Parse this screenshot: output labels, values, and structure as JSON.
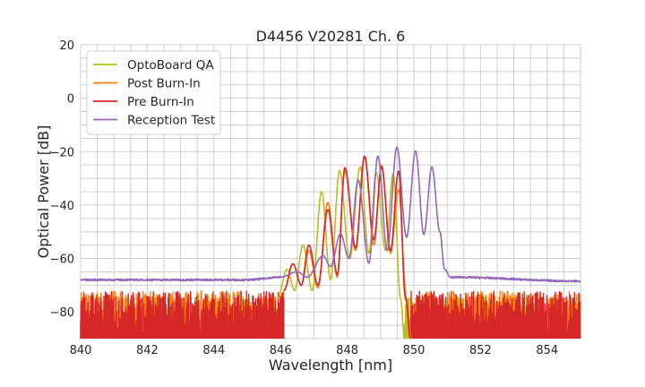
{
  "chart_data": {
    "type": "line",
    "title": "D4456 V20281 Ch. 6",
    "xlabel": "Wavelength [nm]",
    "ylabel": "Optical Power [dB]",
    "xlim": [
      840,
      855
    ],
    "ylim": [
      -90,
      20
    ],
    "xticks": [
      "840",
      "842",
      "844",
      "846",
      "848",
      "850",
      "852",
      "854"
    ],
    "yticks": [
      "20",
      "0",
      "−20",
      "−40",
      "−60",
      "−80"
    ],
    "grid": true,
    "legend_position": "top-left",
    "series": [
      {
        "name": "OptoBoard QA",
        "color": "#bcbd22",
        "noise_floor": [
          -90,
          -74
        ],
        "points": [
          [
            845.9,
            -75
          ],
          [
            846.2,
            -64
          ],
          [
            846.42,
            -72
          ],
          [
            846.67,
            -55
          ],
          [
            846.95,
            -72
          ],
          [
            847.23,
            -35
          ],
          [
            847.5,
            -68
          ],
          [
            847.77,
            -27
          ],
          [
            848.07,
            -60
          ],
          [
            848.39,
            -25.7
          ],
          [
            848.65,
            -58
          ],
          [
            848.87,
            -27.7
          ],
          [
            849.15,
            -57
          ],
          [
            849.38,
            -28.3
          ],
          [
            849.6,
            -75
          ],
          [
            849.72,
            -90
          ]
        ]
      },
      {
        "name": "Post Burn-In",
        "color": "#ff7f0e",
        "noise_floor": [
          -90,
          -72
        ],
        "points": [
          [
            846.1,
            -72
          ],
          [
            846.37,
            -62
          ],
          [
            846.62,
            -70
          ],
          [
            846.85,
            -57
          ],
          [
            847.12,
            -71
          ],
          [
            847.42,
            -39
          ],
          [
            847.7,
            -67
          ],
          [
            847.93,
            -27
          ],
          [
            848.25,
            -57
          ],
          [
            848.52,
            -22
          ],
          [
            848.8,
            -55
          ],
          [
            849.03,
            -25
          ],
          [
            849.3,
            -58
          ],
          [
            849.54,
            -34.3
          ],
          [
            849.78,
            -75
          ],
          [
            849.92,
            -90
          ]
        ]
      },
      {
        "name": "Pre Burn-In",
        "color": "#d62728",
        "noise_floor": [
          -90,
          -72
        ],
        "points": [
          [
            846.1,
            -72
          ],
          [
            846.37,
            -62
          ],
          [
            846.62,
            -70
          ],
          [
            846.85,
            -55
          ],
          [
            847.12,
            -70
          ],
          [
            847.42,
            -41.7
          ],
          [
            847.7,
            -66
          ],
          [
            847.93,
            -26
          ],
          [
            848.25,
            -56
          ],
          [
            848.52,
            -21.7
          ],
          [
            848.8,
            -53
          ],
          [
            849.03,
            -25.7
          ],
          [
            849.3,
            -57
          ],
          [
            849.54,
            -27.3
          ],
          [
            849.75,
            -75
          ],
          [
            849.9,
            -90
          ]
        ]
      },
      {
        "name": "Reception Test",
        "color": "#9467bd",
        "points": [
          [
            840,
            -68
          ],
          [
            845,
            -68
          ],
          [
            846,
            -67
          ],
          [
            846.5,
            -65
          ],
          [
            846.8,
            -67
          ],
          [
            847.28,
            -59
          ],
          [
            847.5,
            -63
          ],
          [
            847.8,
            -50.7
          ],
          [
            848.05,
            -60
          ],
          [
            848.33,
            -30.7
          ],
          [
            848.65,
            -61.7
          ],
          [
            848.92,
            -21.7
          ],
          [
            849.2,
            -57
          ],
          [
            849.49,
            -18.3
          ],
          [
            849.78,
            -52
          ],
          [
            850.05,
            -19.7
          ],
          [
            850.3,
            -51
          ],
          [
            850.54,
            -25.7
          ],
          [
            850.78,
            -50
          ],
          [
            850.92,
            -64
          ],
          [
            851.1,
            -67
          ],
          [
            855,
            -68.5
          ]
        ]
      }
    ]
  }
}
